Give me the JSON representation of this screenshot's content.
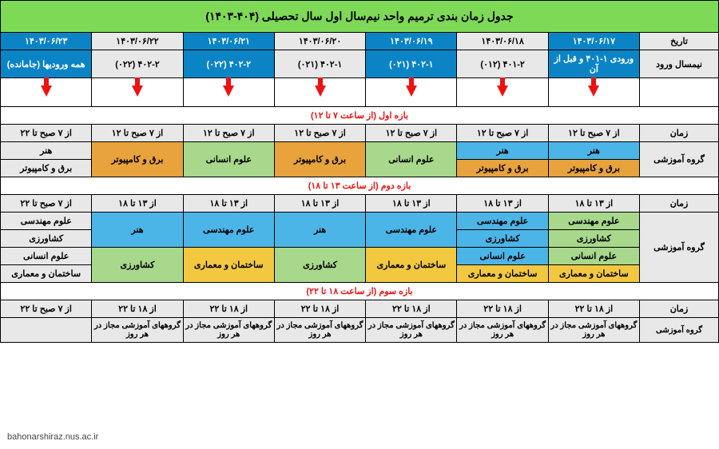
{
  "title": "جدول زمان بندی ترمیم واحد نیم‌سال اول سال تحصیلی (۴۰۴-۱۴۰۳)",
  "labels": {
    "date": "تاریخ",
    "entry": "نیمسال ورود",
    "time": "زمان",
    "group": "گروه آموزشی"
  },
  "dates": [
    "۱۴۰۳/۰۶/۱۷",
    "۱۴۰۳/۰۶/۱۸",
    "۱۴۰۳/۰۶/۱۹",
    "۱۴۰۳/۰۶/۲۰",
    "۱۴۰۳/۰۶/۲۱",
    "۱۴۰۳/۰۶/۲۲",
    "۱۴۰۳/۰۶/۲۳"
  ],
  "entries": [
    "ورودی ۱-۴۰۱ و قبل از آن",
    "۴۰۱-۲ (۰۱۲)",
    "۴۰۲-۱ (۰۲۱)",
    "۴۰۲-۱ (۰۲۱)",
    "۴۰۲-۲ (۰۲۲)",
    "۴۰۲-۲ (۰۲۲)",
    "همه ورودیها (جامانده)"
  ],
  "sections": {
    "s1": "بازه اول (از ساعت ۷ تا ۱۲)",
    "s2": "بازه دوم (از ساعت ۱۳ تا ۱۸)",
    "s3": "بازه سوم (از ساعت ۱۸ تا ۲۲)"
  },
  "time712": "از ۷ صبح تا ۱۲",
  "time722": "از ۷ صبح تا ۲۲",
  "time1318": "از ۱۳ تا ۱۸",
  "time1822": "از ۱۸ تا ۲۲",
  "groups": {
    "honar": "هنر",
    "bargh": "برق و کامپیوتر",
    "ensani": "علوم انسانی",
    "mohandesi": "علوم مهندسی",
    "keshavarzi": "کشاورزی",
    "sakhteman": "ساختمان و معماری",
    "majaz": "گروههای آموزشی مجاز در هر روز"
  },
  "wm": "bahonarshiraz.nus.ac.ir",
  "colors": {
    "title_bg": "#7ed957",
    "blue_header": "#0b84c6",
    "blue_cell": "#4cb5e8",
    "green_cell": "#a7d88c",
    "yellow_cell": "#f2c840",
    "orange_cell": "#e8a33d",
    "gray_cell": "#e8e8e8",
    "red": "#e11"
  }
}
